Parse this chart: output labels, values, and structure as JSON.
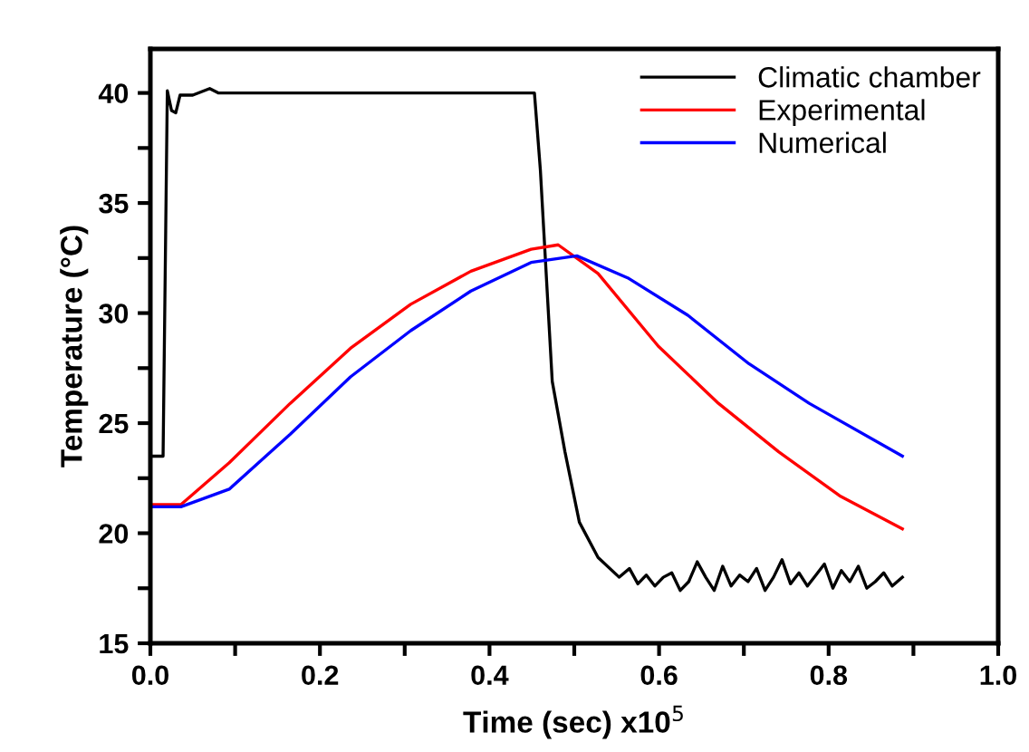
{
  "chart_data": {
    "type": "line",
    "xlabel": "Time (sec) x10$^{5}$",
    "ylabel": "Temperature (°C)",
    "xlim": [
      0,
      1.0
    ],
    "ylim": [
      15,
      42
    ],
    "xticks": [
      {
        "value": 0,
        "label": "0.0"
      },
      {
        "value": 0.1,
        "label": null
      },
      {
        "value": 0.2,
        "label": "0.2"
      },
      {
        "value": 0.3,
        "label": null
      },
      {
        "value": 0.4,
        "label": "0.4"
      },
      {
        "value": 0.5,
        "label": null
      },
      {
        "value": 0.6,
        "label": "0.6"
      },
      {
        "value": 0.7,
        "label": null
      },
      {
        "value": 0.8,
        "label": "0.8"
      },
      {
        "value": 0.9,
        "label": null
      },
      {
        "value": 1.0,
        "label": "1.0"
      }
    ],
    "yticks": [
      15,
      {
        "value": 17.5,
        "label": null
      },
      20,
      {
        "value": 22.5,
        "label": null
      },
      25,
      {
        "value": 27.5,
        "label": null
      },
      30,
      {
        "value": 32.5,
        "label": null
      },
      35,
      {
        "value": 37.5,
        "label": null
      },
      40
    ],
    "legend": "top right",
    "grid": false,
    "marker": "none",
    "line_style": "solid",
    "series": [
      {
        "name": "Climatic chamber",
        "color": "#000000",
        "x": [
          0,
          0.015,
          0.02,
          0.025,
          0.03,
          0.035,
          0.05,
          0.07,
          0.08,
          0.1,
          0.2,
          0.3,
          0.4,
          0.44,
          0.453,
          0.46,
          0.474,
          0.489,
          0.506,
          0.528,
          0.553,
          0.565,
          0.575,
          0.585,
          0.595,
          0.605,
          0.615,
          0.625,
          0.635,
          0.645,
          0.655,
          0.665,
          0.675,
          0.685,
          0.695,
          0.705,
          0.715,
          0.725,
          0.735,
          0.745,
          0.755,
          0.765,
          0.775,
          0.785,
          0.795,
          0.805,
          0.815,
          0.825,
          0.835,
          0.845,
          0.855,
          0.865,
          0.875,
          0.887
        ],
        "values": [
          23.5,
          23.5,
          40.1,
          39.2,
          39.1,
          39.9,
          39.9,
          40.2,
          40.0,
          40.0,
          40.0,
          40.0,
          40.0,
          40.0,
          40.0,
          36.5,
          26.9,
          23.7,
          20.5,
          18.9,
          18.0,
          18.4,
          17.7,
          18.1,
          17.6,
          18.0,
          18.2,
          17.4,
          17.8,
          18.7,
          18.0,
          17.4,
          18.5,
          17.6,
          18.1,
          17.8,
          18.4,
          17.4,
          18.0,
          18.8,
          17.7,
          18.2,
          17.6,
          18.1,
          18.6,
          17.5,
          18.3,
          17.8,
          18.5,
          17.5,
          17.8,
          18.2,
          17.6,
          18.0
        ]
      },
      {
        "name": "Experimental",
        "color": "#ff0000",
        "x": [
          0,
          0.036,
          0.093,
          0.165,
          0.236,
          0.307,
          0.378,
          0.449,
          0.481,
          0.528,
          0.599,
          0.67,
          0.741,
          0.813,
          0.887
        ],
        "values": [
          21.3,
          21.3,
          23.2,
          25.9,
          28.4,
          30.4,
          31.9,
          32.9,
          33.1,
          31.8,
          28.5,
          25.9,
          23.7,
          21.7,
          20.2
        ]
      },
      {
        "name": "Numerical",
        "color": "#0000ff",
        "x": [
          0,
          0.036,
          0.093,
          0.165,
          0.236,
          0.307,
          0.378,
          0.449,
          0.503,
          0.563,
          0.634,
          0.706,
          0.777,
          0.887
        ],
        "values": [
          21.2,
          21.2,
          22.0,
          24.5,
          27.1,
          29.2,
          31.0,
          32.3,
          32.6,
          31.6,
          29.9,
          27.7,
          25.9,
          23.5
        ]
      }
    ]
  }
}
